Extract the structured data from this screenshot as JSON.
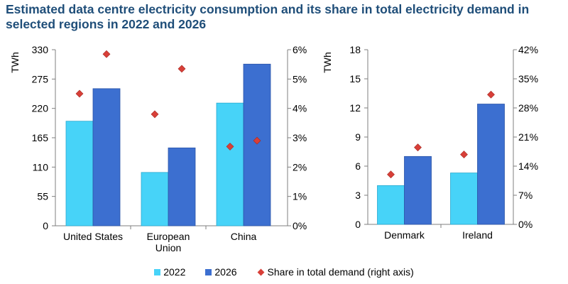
{
  "title": "Estimated data centre electricity consumption and its share in total electricity demand in selected regions in 2022 and 2026",
  "legend": {
    "s2022": "2022",
    "s2026": "2026",
    "share": "Share in total demand (right axis)"
  },
  "colors": {
    "s2022": "#47d3f8",
    "s2026": "#3c6fd0",
    "share": "#d83f38",
    "axis": "#7f7f7f",
    "title": "#1f4e79"
  },
  "chart_data": [
    {
      "type": "bar",
      "ylabel": "TWh",
      "ylim": [
        0,
        330
      ],
      "yticks": [
        "0",
        "55",
        "110",
        "165",
        "220",
        "275",
        "330"
      ],
      "y2lim": [
        0,
        6
      ],
      "y2ticks": [
        "0%",
        "1%",
        "2%",
        "3%",
        "4%",
        "5%",
        "6%"
      ],
      "categories": [
        [
          "United States"
        ],
        [
          "European",
          "Union"
        ],
        [
          "China"
        ]
      ],
      "series": [
        {
          "name": "2022",
          "values": [
            196,
            100,
            230
          ]
        },
        {
          "name": "2026",
          "values": [
            257,
            146,
            303
          ]
        }
      ],
      "share": {
        "name": "Share in total demand (right axis)",
        "values": [
          [
            4.5,
            5.85
          ],
          [
            3.8,
            5.35
          ],
          [
            2.7,
            2.9
          ]
        ]
      }
    },
    {
      "type": "bar",
      "ylabel": "TWh",
      "ylim": [
        0,
        18
      ],
      "yticks": [
        "0",
        "3",
        "6",
        "9",
        "12",
        "15",
        "18"
      ],
      "y2lim": [
        0,
        42
      ],
      "y2ticks": [
        "0%",
        "7%",
        "14%",
        "21%",
        "28%",
        "35%",
        "42%"
      ],
      "categories": [
        [
          "Denmark"
        ],
        [
          "Ireland"
        ]
      ],
      "series": [
        {
          "name": "2022",
          "values": [
            4,
            5.3
          ]
        },
        {
          "name": "2026",
          "values": [
            7,
            12.4
          ]
        }
      ],
      "share": {
        "name": "Share in total demand (right axis)",
        "values": [
          [
            12,
            18.5
          ],
          [
            16.8,
            31.2
          ]
        ]
      }
    }
  ]
}
